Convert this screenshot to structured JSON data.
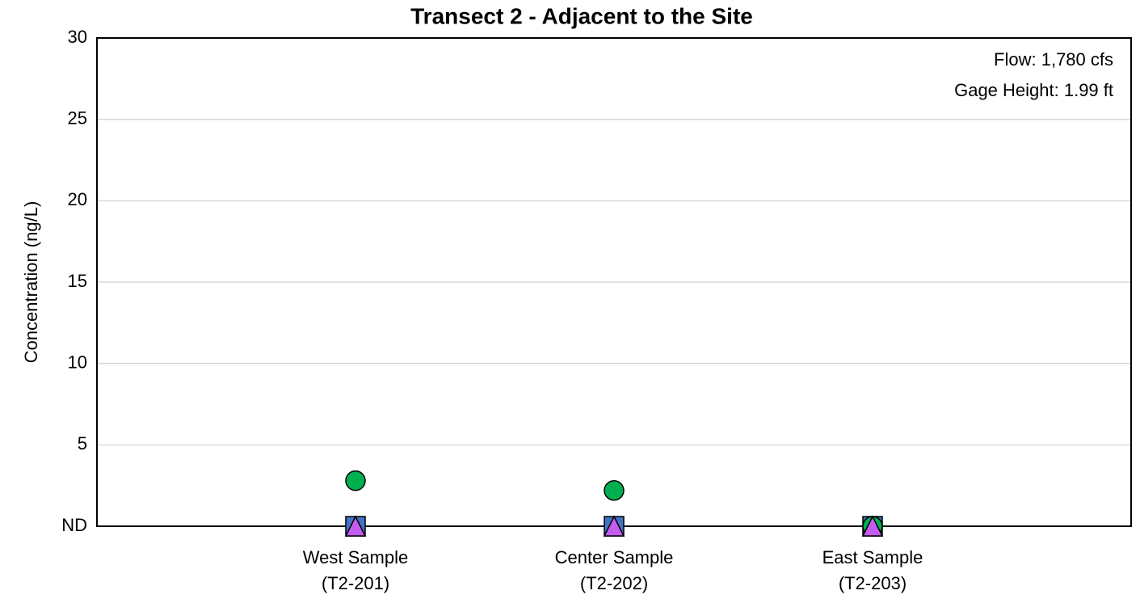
{
  "chart_data": {
    "type": "scatter",
    "title": "Transect 2 - Adjacent to the Site",
    "y_label": "Concentration (ng/L)",
    "annotations": [
      "Flow: 1,780 cfs",
      "Gage Height: 1.99 ft"
    ],
    "categories": [
      [
        "West Sample",
        "(T2-201)"
      ],
      [
        "Center Sample",
        "(T2-202)"
      ],
      [
        "East Sample",
        "(T2-203)"
      ]
    ],
    "series": [
      {
        "color": "#4472c4",
        "marker": "square",
        "values": [
          0,
          0,
          0
        ]
      },
      {
        "color": "#00b050",
        "marker": "circle",
        "values": [
          2.8,
          2.2,
          0
        ]
      },
      {
        "color": "#c55cf0",
        "marker": "triangle",
        "values": [
          0,
          0,
          0
        ]
      }
    ],
    "ylim": [
      0,
      30
    ],
    "yticks": [
      {
        "value": 0,
        "label": "ND"
      },
      5,
      10,
      15,
      20,
      25,
      30
    ],
    "grid": true
  }
}
